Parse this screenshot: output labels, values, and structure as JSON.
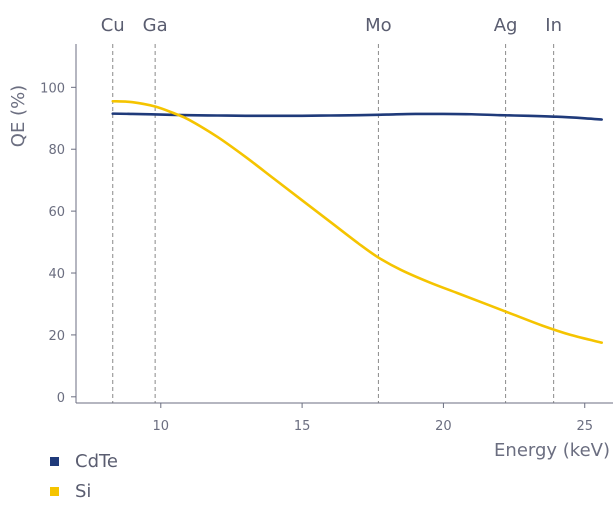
{
  "chart_data": {
    "type": "line",
    "title": "",
    "xlabel": "Energy (keV)",
    "ylabel": "QE (%)",
    "xlim": [
      7,
      26
    ],
    "ylim": [
      -2,
      114
    ],
    "x_ticks": [
      10,
      15,
      20,
      25
    ],
    "y_ticks": [
      0,
      20,
      40,
      60,
      80,
      100
    ],
    "grid": false,
    "legend_position": "bottom-left",
    "edges": [
      {
        "label": "Cu",
        "x": 8.3
      },
      {
        "label": "Ga",
        "x": 9.8
      },
      {
        "label": "Mo",
        "x": 17.7
      },
      {
        "label": "Ag",
        "x": 22.2
      },
      {
        "label": "In",
        "x": 23.9
      }
    ],
    "series": [
      {
        "name": "CdTe",
        "color": "#1f3a7a",
        "x": [
          8.3,
          9.0,
          10.0,
          11.0,
          12.0,
          13.0,
          14.0,
          15.0,
          16.0,
          17.0,
          18.0,
          19.0,
          20.0,
          21.0,
          22.0,
          23.0,
          24.0,
          25.0,
          25.6
        ],
        "y": [
          91.5,
          91.4,
          91.2,
          91.0,
          90.9,
          90.8,
          90.8,
          90.8,
          90.9,
          91.0,
          91.2,
          91.4,
          91.4,
          91.3,
          91.0,
          90.8,
          90.5,
          90.0,
          89.6
        ]
      },
      {
        "name": "Si",
        "color": "#f5c400",
        "x": [
          8.3,
          9.0,
          9.8,
          10.5,
          11.0,
          12.0,
          13.0,
          14.0,
          15.0,
          16.0,
          17.0,
          17.7,
          18.5,
          19.5,
          20.5,
          21.5,
          22.5,
          23.5,
          24.5,
          25.6
        ],
        "y": [
          95.5,
          95.2,
          93.8,
          91.5,
          89.5,
          84.0,
          77.5,
          70.5,
          63.5,
          56.5,
          49.5,
          45.0,
          41.0,
          37.0,
          33.5,
          30.0,
          26.5,
          23.0,
          20.0,
          17.5
        ]
      }
    ]
  }
}
